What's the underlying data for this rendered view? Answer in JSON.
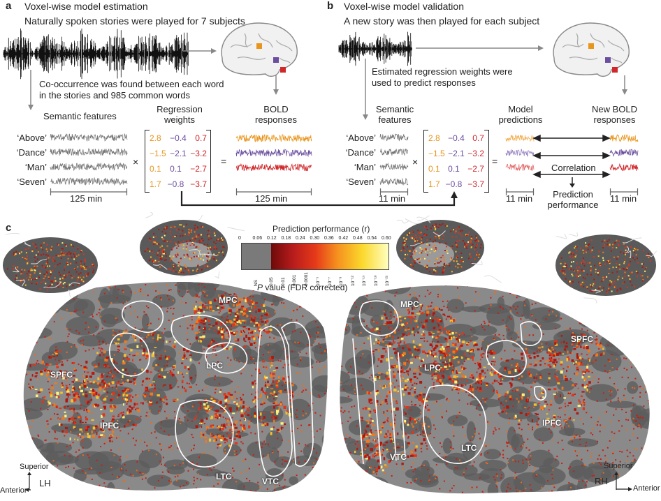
{
  "panel_a": {
    "letter": "a",
    "title": "Voxel-wise model estimation",
    "subtitle": "Naturally spoken stories were played for 7 subjects",
    "cooccurrence": [
      "Co-occurrence was found between each word",
      "in the stories and 985 common words"
    ],
    "semantic_features": "Semantic features",
    "regression_weights": [
      "Regression",
      "weights"
    ],
    "bold_responses": [
      "BOLD",
      "responses"
    ],
    "features": [
      "‘Above’",
      "‘Dance’",
      "‘Man’",
      "‘Seven’"
    ],
    "times_symbol": "×",
    "equals_symbol": "=",
    "duration_features": "125 min",
    "duration_bold": "125 min"
  },
  "panel_b": {
    "letter": "b",
    "title": "Voxel-wise model validation",
    "subtitle": "A new story was then played for each subject",
    "estimated": [
      "Estimated regression weights were",
      "used to predict responses"
    ],
    "semantic_features": [
      "Semantic",
      "features"
    ],
    "model_predictions": [
      "Model",
      "predictions"
    ],
    "new_bold": [
      "New BOLD",
      "responses"
    ],
    "features": [
      "‘Above’",
      "‘Dance’",
      "‘Man’",
      "‘Seven’"
    ],
    "times_symbol": "×",
    "equals_symbol": "=",
    "correlation": "Correlation",
    "prediction_performance": [
      "Prediction",
      "performance"
    ],
    "duration_features": "11 min",
    "duration_predictions": "11 min",
    "duration_new": "11 min"
  },
  "weights": [
    [
      "2.8",
      "−0.4",
      "0.7"
    ],
    [
      "−1.5",
      "−2.1",
      "−3.2"
    ],
    [
      "0.1",
      "0.1",
      "−2.7"
    ],
    [
      "1.7",
      "−0.8",
      "−3.7"
    ]
  ],
  "weight_colors": [
    "#e8951c",
    "#6b4f9e",
    "#d0272a"
  ],
  "panel_c": {
    "letter": "c",
    "colorbar_title": "Prediction performance (r)",
    "r_ticks": [
      "0",
      "0.06",
      "0.12",
      "0.18",
      "0.24",
      "0.30",
      "0.36",
      "0.42",
      "0.48",
      "0.54",
      "0.60"
    ],
    "p_ticks": [
      "NS",
      "0.05",
      "0.01",
      "0.001",
      "0.0001",
      "10⁻⁵",
      "10⁻⁷",
      "10⁻⁹",
      "10⁻¹²",
      "10⁻¹⁵",
      "10⁻¹⁸",
      "10⁻²¹"
    ],
    "p_label_p": "P",
    "p_label_rest": " value (FDR corrected)",
    "left_regions": [
      "MPC",
      "LPC",
      "SPFC",
      "IPFC",
      "LTC",
      "VTC"
    ],
    "right_regions": [
      "MPC",
      "LPC",
      "SPFC",
      "IPFC",
      "LTC",
      "VTC"
    ],
    "left_compass": {
      "up": "Superior",
      "side": "Anterior",
      "hemi": "LH"
    },
    "right_compass": {
      "up": "Superior",
      "side": "Anterior",
      "hemi": "RH"
    }
  }
}
